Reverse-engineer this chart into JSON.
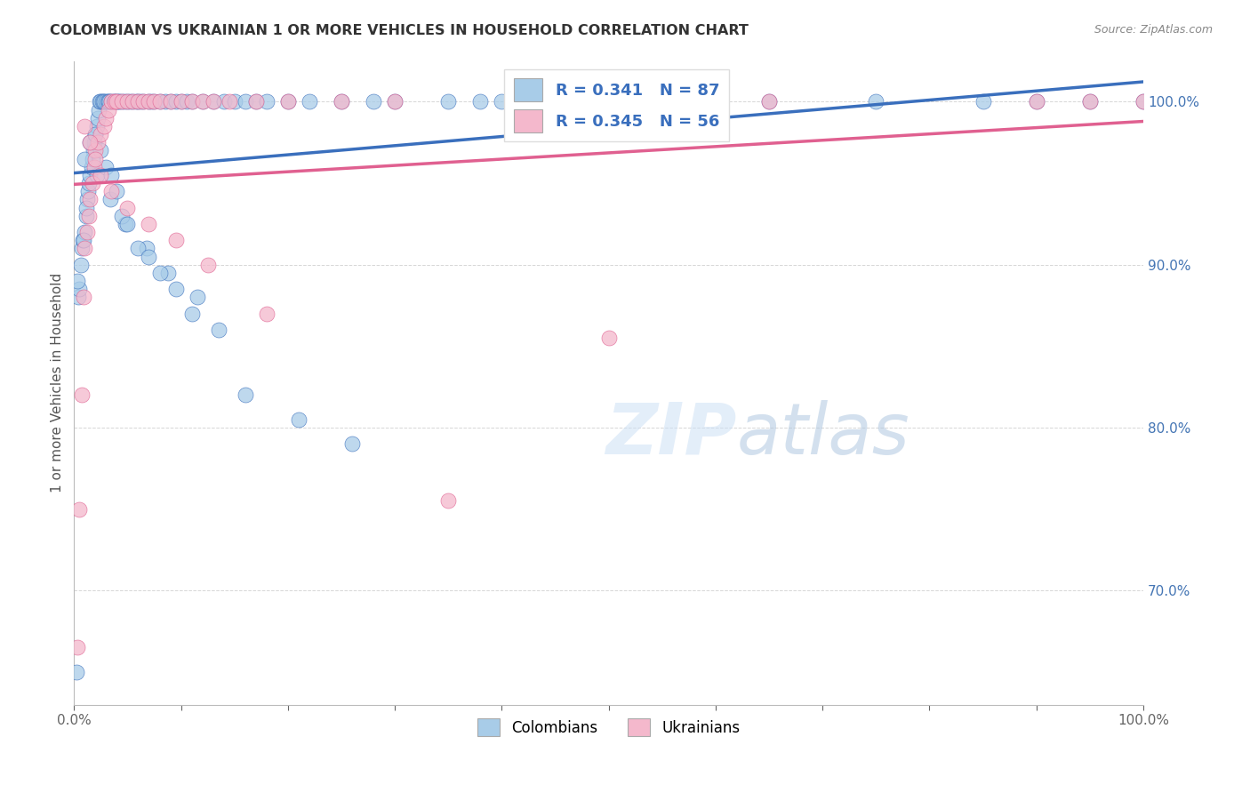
{
  "title": "COLOMBIAN VS UKRAINIAN 1 OR MORE VEHICLES IN HOUSEHOLD CORRELATION CHART",
  "source": "Source: ZipAtlas.com",
  "ylabel": "1 or more Vehicles in Household",
  "r_colombian": 0.341,
  "n_colombian": 87,
  "r_ukrainian": 0.345,
  "n_ukrainian": 56,
  "colombian_color": "#a8cce8",
  "ukrainian_color": "#f4b8cc",
  "trendline_colombian": "#3a6fbd",
  "trendline_ukrainian": "#e06090",
  "legend_text_color_r": "#3a6fbd",
  "legend_text_color_n": "#e84040",
  "background_color": "#ffffff",
  "xlim": [
    0.0,
    100.0
  ],
  "ylim": [
    63.0,
    102.5
  ],
  "yticks": [
    70.0,
    80.0,
    90.0,
    100.0
  ],
  "ytick_labels": [
    "70.0%",
    "80.0%",
    "90.0%",
    "100.0%"
  ],
  "colombian_x": [
    0.2,
    0.4,
    0.5,
    0.7,
    0.8,
    1.0,
    1.1,
    1.2,
    1.3,
    1.4,
    1.5,
    1.6,
    1.7,
    1.8,
    1.9,
    2.0,
    2.1,
    2.2,
    2.3,
    2.4,
    2.5,
    2.6,
    2.7,
    2.8,
    3.0,
    3.1,
    3.2,
    3.3,
    3.5,
    3.7,
    3.8,
    4.0,
    4.1,
    4.2,
    4.5,
    4.7,
    5.0,
    5.2,
    5.5,
    5.8,
    6.0,
    6.2,
    6.5,
    7.0,
    7.2,
    7.5,
    8.0,
    8.5,
    9.0,
    9.5,
    10.0,
    10.5,
    11.0,
    12.0,
    13.0,
    14.0,
    15.0,
    16.0,
    17.0,
    18.0,
    20.0,
    22.0,
    25.0,
    28.0,
    30.0,
    35.0,
    38.0,
    40.0,
    45.0,
    50.0,
    60.0,
    65.0,
    75.0,
    85.0,
    90.0,
    95.0,
    100.0,
    0.3,
    0.6,
    0.9,
    1.15,
    2.15,
    3.4,
    4.8,
    6.8,
    8.8,
    11.5
  ],
  "colombian_y": [
    65.0,
    88.0,
    88.5,
    91.0,
    91.5,
    92.0,
    93.0,
    94.0,
    94.5,
    95.0,
    95.5,
    96.0,
    96.5,
    97.0,
    97.5,
    98.0,
    98.5,
    99.0,
    99.5,
    100.0,
    100.0,
    100.0,
    100.0,
    100.0,
    100.0,
    100.0,
    100.0,
    100.0,
    100.0,
    100.0,
    100.0,
    100.0,
    100.0,
    100.0,
    100.0,
    100.0,
    100.0,
    100.0,
    100.0,
    100.0,
    100.0,
    100.0,
    100.0,
    100.0,
    100.0,
    100.0,
    100.0,
    100.0,
    100.0,
    100.0,
    100.0,
    100.0,
    100.0,
    100.0,
    100.0,
    100.0,
    100.0,
    100.0,
    100.0,
    100.0,
    100.0,
    100.0,
    100.0,
    100.0,
    100.0,
    100.0,
    100.0,
    100.0,
    100.0,
    100.0,
    100.0,
    100.0,
    100.0,
    100.0,
    100.0,
    100.0,
    100.0,
    89.0,
    90.0,
    91.5,
    93.5,
    95.5,
    94.0,
    92.5,
    91.0,
    89.5,
    88.0
  ],
  "colombian_x2": [
    1.0,
    1.5,
    2.0,
    2.5,
    3.0,
    3.5,
    4.0,
    4.5,
    5.0,
    6.0,
    7.0,
    8.0,
    9.5,
    11.0,
    13.5,
    16.0,
    21.0,
    26.0
  ],
  "colombian_y2": [
    96.5,
    97.5,
    98.0,
    97.0,
    96.0,
    95.5,
    94.5,
    93.0,
    92.5,
    91.0,
    90.5,
    89.5,
    88.5,
    87.0,
    86.0,
    82.0,
    80.5,
    79.0
  ],
  "ukrainian_x": [
    0.3,
    0.5,
    0.7,
    0.9,
    1.0,
    1.2,
    1.4,
    1.5,
    1.7,
    1.9,
    2.0,
    2.2,
    2.5,
    2.8,
    3.0,
    3.2,
    3.5,
    3.8,
    4.0,
    4.5,
    5.0,
    5.5,
    6.0,
    6.5,
    7.0,
    7.5,
    8.0,
    9.0,
    10.0,
    11.0,
    12.0,
    13.0,
    14.5,
    17.0,
    20.0,
    25.0,
    30.0,
    50.0,
    65.0,
    90.0,
    95.0,
    100.0
  ],
  "ukrainian_y": [
    66.5,
    75.0,
    82.0,
    88.0,
    91.0,
    92.0,
    93.0,
    94.0,
    95.0,
    96.0,
    97.0,
    97.5,
    98.0,
    98.5,
    99.0,
    99.5,
    100.0,
    100.0,
    100.0,
    100.0,
    100.0,
    100.0,
    100.0,
    100.0,
    100.0,
    100.0,
    100.0,
    100.0,
    100.0,
    100.0,
    100.0,
    100.0,
    100.0,
    100.0,
    100.0,
    100.0,
    100.0,
    85.5,
    100.0,
    100.0,
    100.0,
    100.0
  ],
  "ukrainian_x2": [
    1.0,
    1.5,
    2.0,
    2.5,
    3.5,
    5.0,
    7.0,
    9.5,
    12.5,
    18.0,
    35.0
  ],
  "ukrainian_y2": [
    98.5,
    97.5,
    96.5,
    95.5,
    94.5,
    93.5,
    92.5,
    91.5,
    90.0,
    87.0,
    75.5
  ]
}
